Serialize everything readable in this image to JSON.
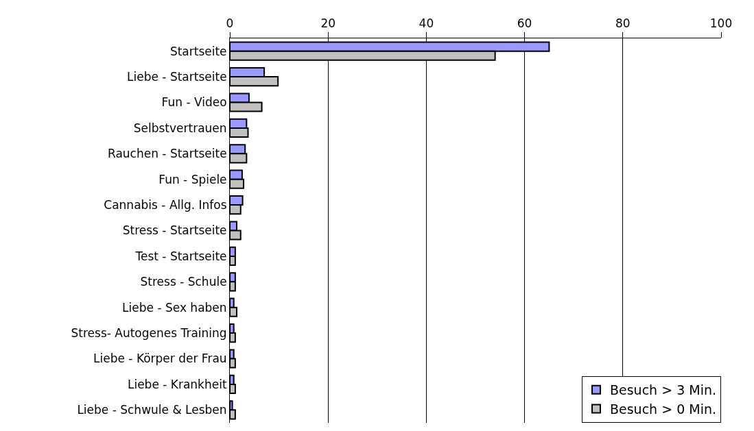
{
  "chart_data": {
    "type": "bar",
    "orientation": "horizontal",
    "categories": [
      "Startseite",
      "Liebe - Startseite",
      "Fun - Video",
      "Selbstvertrauen",
      "Rauchen - Startseite",
      "Fun - Spiele",
      "Cannabis - Allg. Infos",
      "Stress - Startseite",
      "Test - Startseite",
      "Stress - Schule",
      "Liebe - Sex haben",
      "Stress- Autogenes Training",
      "Liebe - Körper der Frau",
      "Liebe - Krankheit",
      "Liebe - Schwule & Lesben"
    ],
    "series": [
      {
        "name": "Besuch > 3 Min.",
        "color": "#9999ff",
        "values": [
          65.0,
          7.0,
          3.9,
          3.4,
          3.1,
          2.5,
          2.6,
          1.4,
          1.1,
          1.1,
          0.8,
          0.8,
          0.8,
          0.8,
          0.5
        ]
      },
      {
        "name": "Besuch > 0 Min.",
        "color": "#c0c0c0",
        "values": [
          54.0,
          9.8,
          6.5,
          3.7,
          3.4,
          2.8,
          2.2,
          2.2,
          1.1,
          1.1,
          1.4,
          1.1,
          1.1,
          1.1,
          1.1
        ]
      }
    ],
    "xlim": [
      0,
      100
    ],
    "xticks": [
      0,
      20,
      40,
      60,
      80,
      100
    ],
    "grid": "x",
    "legend": "bottom right"
  }
}
